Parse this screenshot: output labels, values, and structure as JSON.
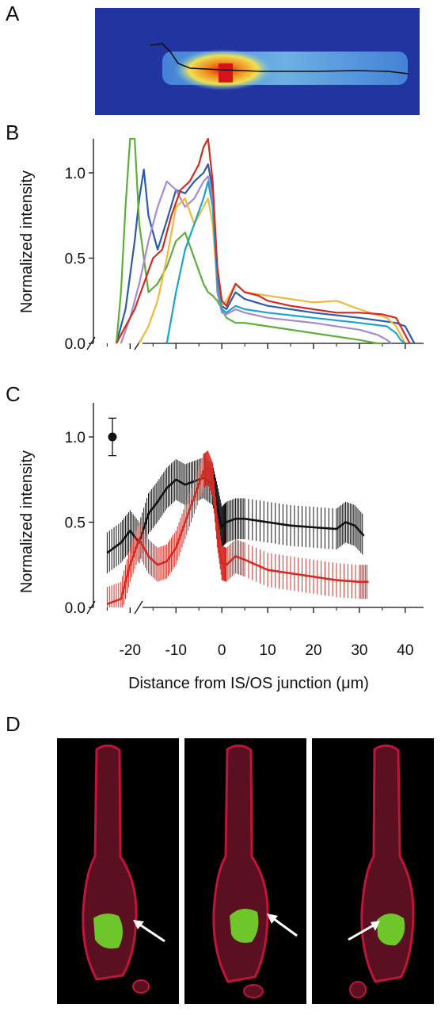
{
  "panels": {
    "a_label": "A",
    "b_label": "B",
    "c_label": "C",
    "d_label": "D"
  },
  "chart_data": [
    {
      "panel": "B",
      "type": "line",
      "ylabel": "Normalized intensity",
      "xlabel": "",
      "xlim": [
        -28,
        44
      ],
      "ylim": [
        0,
        1.2
      ],
      "yticks": [
        "0.0",
        "0.5",
        "1.0"
      ],
      "series": [
        {
          "color": "#2a5caa",
          "x": [
            -23,
            -21,
            -20,
            -19,
            -18,
            -17,
            -16,
            -14,
            -12,
            -10,
            -8,
            -6,
            -4,
            -3,
            -2,
            -1,
            0,
            1,
            3,
            5,
            10,
            20,
            30,
            38,
            40,
            41,
            42
          ],
          "y": [
            0,
            0.2,
            0.4,
            0.6,
            0.85,
            1.02,
            0.75,
            0.55,
            0.72,
            0.9,
            0.88,
            0.95,
            1.0,
            1.05,
            0.9,
            0.4,
            0.22,
            0.2,
            0.3,
            0.26,
            0.22,
            0.18,
            0.15,
            0.12,
            0.1,
            0.05,
            0
          ]
        },
        {
          "color": "#5fae3a",
          "x": [
            -23,
            -22,
            -21,
            -20,
            -19,
            -18,
            -16,
            -14,
            -12,
            -10,
            -8,
            -6,
            -4,
            -3,
            -2,
            -1,
            0,
            1,
            3,
            5,
            10,
            20,
            30,
            32,
            34,
            35
          ],
          "y": [
            0,
            0.3,
            0.8,
            1.2,
            1.2,
            0.7,
            0.3,
            0.35,
            0.45,
            0.6,
            0.65,
            0.5,
            0.35,
            0.3,
            0.28,
            0.25,
            0.2,
            0.15,
            0.12,
            0.12,
            0.1,
            0.06,
            0.02,
            0.01,
            0,
            0
          ]
        },
        {
          "color": "#a58ad0",
          "x": [
            -22,
            -20,
            -18,
            -16,
            -14,
            -12,
            -10,
            -8,
            -6,
            -4,
            -3,
            -2,
            -1,
            0,
            1,
            3,
            5,
            10,
            20,
            30,
            34,
            36,
            37
          ],
          "y": [
            0,
            0.15,
            0.35,
            0.6,
            0.8,
            0.95,
            0.9,
            0.8,
            0.85,
            0.95,
            0.98,
            0.85,
            0.3,
            0.18,
            0.17,
            0.2,
            0.18,
            0.15,
            0.12,
            0.08,
            0.05,
            0.02,
            0
          ]
        },
        {
          "color": "#f0b83c",
          "x": [
            -18,
            -16,
            -14,
            -12,
            -10,
            -8,
            -6,
            -4,
            -3,
            -2,
            -1,
            0,
            1,
            3,
            5,
            10,
            15,
            20,
            25,
            30,
            36,
            38,
            39,
            40
          ],
          "y": [
            0,
            0.1,
            0.25,
            0.5,
            0.8,
            0.85,
            0.7,
            0.8,
            0.85,
            0.7,
            0.35,
            0.22,
            0.25,
            0.35,
            0.3,
            0.28,
            0.26,
            0.24,
            0.25,
            0.2,
            0.15,
            0.1,
            0.05,
            0
          ]
        },
        {
          "color": "#1ca3cf",
          "x": [
            -12,
            -10,
            -8,
            -6,
            -4,
            -3,
            -2,
            -1,
            0,
            1,
            3,
            5,
            10,
            20,
            30,
            36,
            38,
            39,
            40
          ],
          "y": [
            0,
            0.3,
            0.55,
            0.7,
            0.85,
            0.95,
            0.8,
            0.35,
            0.2,
            0.18,
            0.22,
            0.2,
            0.18,
            0.15,
            0.12,
            0.1,
            0.06,
            0.02,
            0
          ]
        },
        {
          "color": "#d42a22",
          "x": [
            -23,
            -21,
            -19,
            -17,
            -15,
            -13,
            -11,
            -9,
            -7,
            -5,
            -4,
            -3,
            -2,
            -1,
            0,
            1,
            3,
            5,
            8,
            10,
            15,
            20,
            25,
            30,
            35,
            38,
            40,
            41
          ],
          "y": [
            0,
            0.1,
            0.2,
            0.35,
            0.5,
            0.55,
            0.75,
            0.9,
            0.95,
            1.05,
            1.15,
            1.2,
            0.95,
            0.45,
            0.25,
            0.22,
            0.35,
            0.3,
            0.28,
            0.25,
            0.22,
            0.2,
            0.18,
            0.18,
            0.17,
            0.15,
            0.05,
            0
          ]
        }
      ]
    },
    {
      "panel": "C",
      "type": "line",
      "ylabel": "Normalized intensity",
      "xlabel": "Distance from IS/OS junction (μm)",
      "xlim": [
        -28,
        44
      ],
      "ylim": [
        0,
        1.2
      ],
      "xticks": [
        "-20",
        "-10",
        "0",
        "10",
        "20",
        "30",
        "40"
      ],
      "yticks": [
        "0.0",
        "0.5",
        "1.0"
      ],
      "reference_point": {
        "y": 1.0,
        "err": 0.11
      },
      "series": [
        {
          "color": "#111111",
          "err": 0.12,
          "x": [
            -25,
            -22,
            -20,
            -18,
            -16,
            -14,
            -12,
            -10,
            -8,
            -6,
            -4,
            -2,
            -1,
            0,
            1,
            3,
            5,
            10,
            15,
            20,
            25,
            27,
            29,
            31
          ],
          "y": [
            0.32,
            0.38,
            0.45,
            0.38,
            0.55,
            0.62,
            0.7,
            0.75,
            0.72,
            0.74,
            0.76,
            0.72,
            0.6,
            0.47,
            0.5,
            0.52,
            0.52,
            0.5,
            0.48,
            0.47,
            0.46,
            0.5,
            0.48,
            0.42
          ]
        },
        {
          "color": "#d42a22",
          "err": 0.1,
          "x": [
            -25,
            -22,
            -20,
            -18,
            -16,
            -14,
            -12,
            -10,
            -8,
            -6,
            -4,
            -3,
            -2,
            -1,
            0,
            1,
            3,
            5,
            10,
            15,
            20,
            25,
            30,
            32
          ],
          "y": [
            0.02,
            0.05,
            0.25,
            0.4,
            0.3,
            0.25,
            0.27,
            0.35,
            0.5,
            0.65,
            0.8,
            0.82,
            0.75,
            0.45,
            0.26,
            0.25,
            0.3,
            0.28,
            0.22,
            0.2,
            0.18,
            0.16,
            0.15,
            0.15
          ]
        }
      ]
    }
  ]
}
